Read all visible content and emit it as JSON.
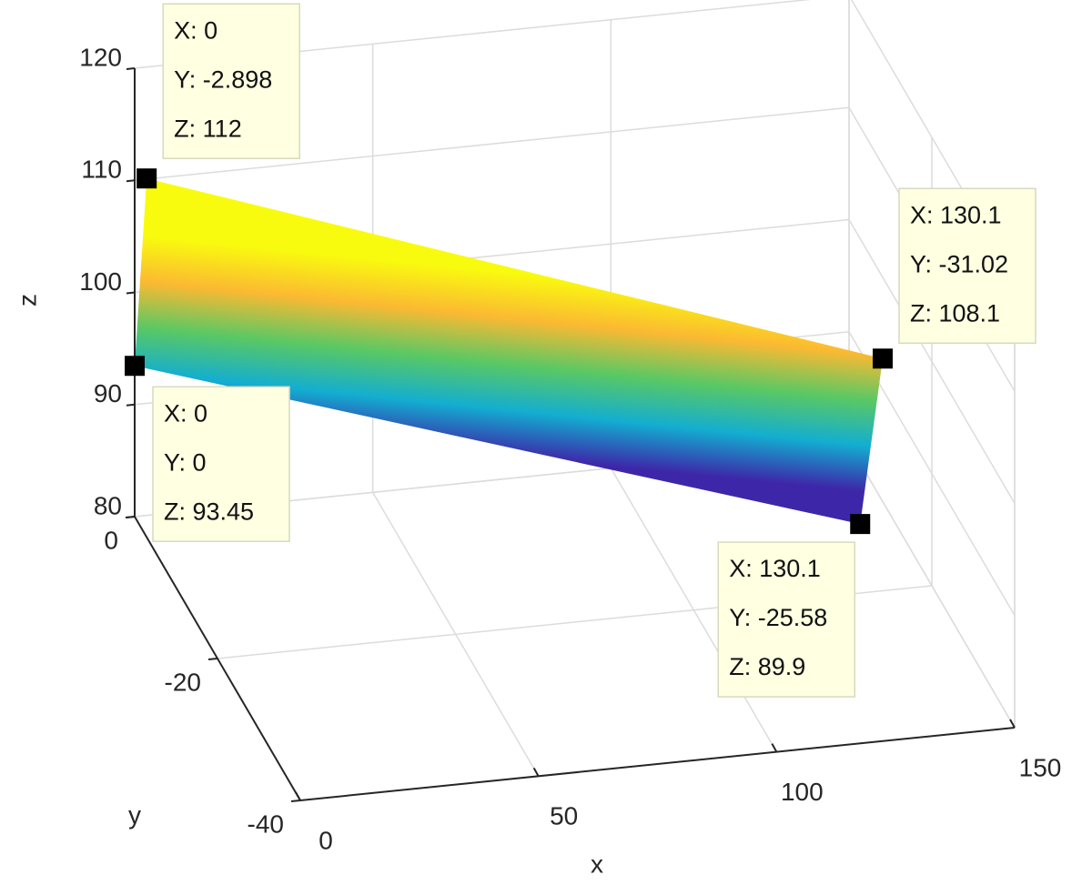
{
  "chart_data": {
    "type": "surface3d",
    "xlabel": "x",
    "ylabel": "y",
    "zlabel": "z",
    "xlim": [
      0,
      150
    ],
    "ylim": [
      -40,
      0
    ],
    "zlim": [
      80,
      120
    ],
    "xticks": [
      0,
      50,
      100,
      150
    ],
    "yticks": [
      -40,
      -20,
      0
    ],
    "zticks": [
      80,
      90,
      100,
      110,
      120
    ],
    "grid": true,
    "colormap": [
      "#f9fb0e",
      "#fbb932",
      "#5ac864",
      "#13aed1",
      "#3e26a8"
    ],
    "datatips": [
      {
        "x": 0,
        "y": -2.898,
        "z": 112,
        "labels": [
          "X: 0",
          "Y: -2.898",
          "Z: 112"
        ]
      },
      {
        "x": 0,
        "y": 0,
        "z": 93.45,
        "labels": [
          "X: 0",
          "Y: 0",
          "Z: 93.45"
        ]
      },
      {
        "x": 130.1,
        "y": -31.02,
        "z": 108.1,
        "labels": [
          "X: 130.1",
          "Y: -31.02",
          "Z: 108.1"
        ]
      },
      {
        "x": 130.1,
        "y": -25.58,
        "z": 89.9,
        "labels": [
          "X: 130.1",
          "Y: -25.58",
          "Z: 89.9"
        ]
      }
    ]
  }
}
